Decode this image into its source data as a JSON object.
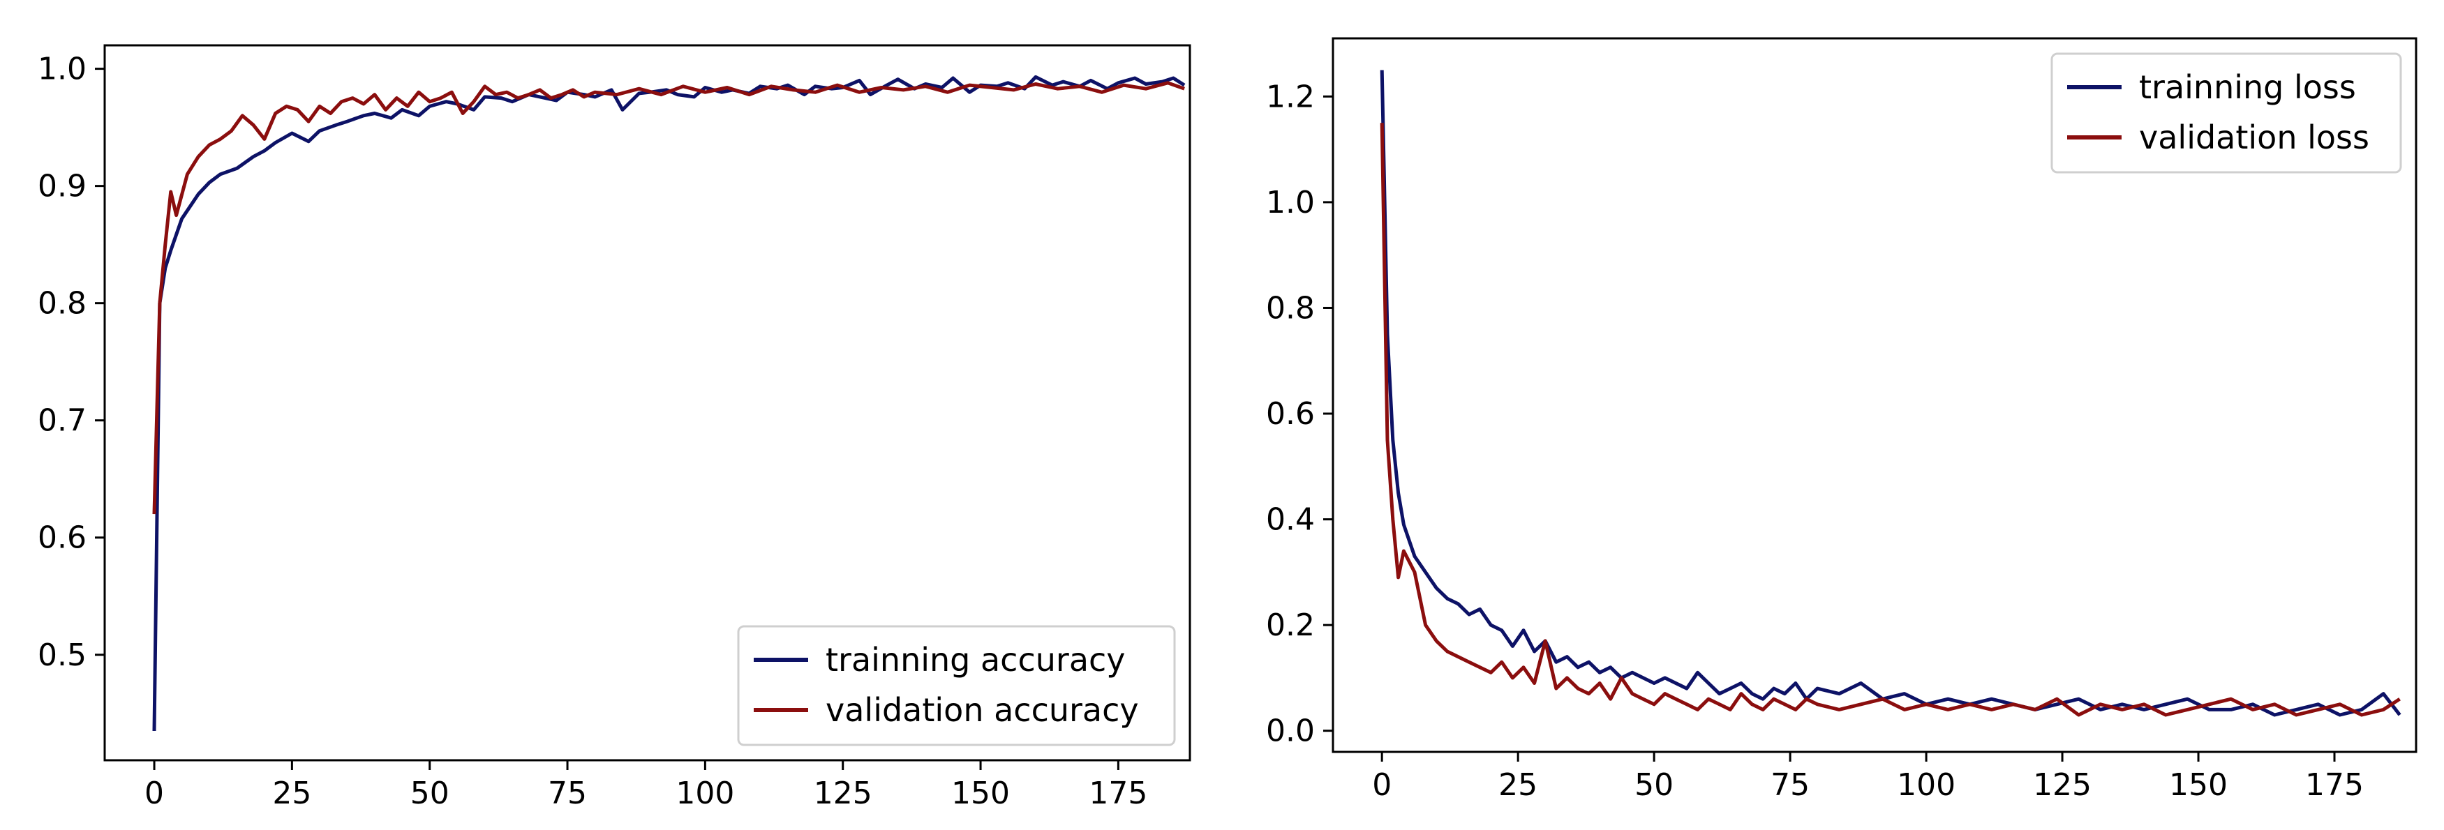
{
  "chart_data": [
    {
      "type": "line",
      "title": "",
      "xlabel": "",
      "ylabel": "",
      "xlim": [
        -9,
        188
      ],
      "ylim": [
        0.41,
        1.02
      ],
      "grid": false,
      "legend_position": "lower-right",
      "xticks": [
        0,
        25,
        50,
        75,
        100,
        125,
        150,
        175
      ],
      "xtick_labels": [
        "0",
        "25",
        "50",
        "75",
        "100",
        "125",
        "150",
        "175"
      ],
      "yticks": [
        0.5,
        0.6,
        0.7,
        0.8,
        0.9,
        1.0
      ],
      "ytick_labels": [
        "0.5",
        "0.6",
        "0.7",
        "0.8",
        "0.9",
        "1.0"
      ],
      "series": [
        {
          "name": "trainning accuracy",
          "color": "#0d1266",
          "x": [
            0,
            1,
            2,
            3,
            5,
            8,
            10,
            12,
            15,
            18,
            20,
            22,
            25,
            28,
            30,
            33,
            35,
            38,
            40,
            43,
            45,
            48,
            50,
            53,
            55,
            58,
            60,
            63,
            65,
            68,
            70,
            73,
            75,
            78,
            80,
            83,
            85,
            88,
            90,
            93,
            95,
            98,
            100,
            103,
            105,
            108,
            110,
            113,
            115,
            118,
            120,
            123,
            125,
            128,
            130,
            133,
            135,
            138,
            140,
            143,
            145,
            148,
            150,
            153,
            155,
            158,
            160,
            163,
            165,
            168,
            170,
            173,
            175,
            178,
            180,
            183,
            185,
            187
          ],
          "y": [
            0.435,
            0.8,
            0.83,
            0.845,
            0.872,
            0.893,
            0.903,
            0.91,
            0.915,
            0.925,
            0.93,
            0.937,
            0.945,
            0.938,
            0.947,
            0.952,
            0.955,
            0.96,
            0.962,
            0.958,
            0.965,
            0.96,
            0.968,
            0.972,
            0.97,
            0.965,
            0.976,
            0.975,
            0.972,
            0.978,
            0.976,
            0.973,
            0.98,
            0.978,
            0.976,
            0.982,
            0.965,
            0.979,
            0.98,
            0.982,
            0.978,
            0.976,
            0.984,
            0.98,
            0.982,
            0.979,
            0.985,
            0.983,
            0.986,
            0.978,
            0.985,
            0.983,
            0.984,
            0.99,
            0.978,
            0.986,
            0.991,
            0.983,
            0.987,
            0.984,
            0.992,
            0.98,
            0.986,
            0.985,
            0.988,
            0.983,
            0.993,
            0.986,
            0.989,
            0.985,
            0.99,
            0.983,
            0.988,
            0.992,
            0.987,
            0.989,
            0.992,
            0.986
          ]
        },
        {
          "name": "validation accuracy",
          "color": "#8b0e0e",
          "x": [
            0,
            1,
            2,
            3,
            4,
            6,
            8,
            10,
            12,
            14,
            16,
            18,
            20,
            22,
            24,
            26,
            28,
            30,
            32,
            34,
            36,
            38,
            40,
            42,
            44,
            46,
            48,
            50,
            52,
            54,
            56,
            58,
            60,
            62,
            64,
            66,
            68,
            70,
            72,
            74,
            76,
            78,
            80,
            84,
            88,
            92,
            96,
            100,
            104,
            108,
            112,
            116,
            120,
            124,
            128,
            132,
            136,
            140,
            144,
            148,
            152,
            156,
            160,
            164,
            168,
            172,
            176,
            180,
            184,
            187
          ],
          "y": [
            0.62,
            0.8,
            0.85,
            0.895,
            0.875,
            0.91,
            0.925,
            0.935,
            0.94,
            0.947,
            0.96,
            0.952,
            0.94,
            0.962,
            0.968,
            0.965,
            0.955,
            0.968,
            0.962,
            0.972,
            0.975,
            0.97,
            0.978,
            0.965,
            0.975,
            0.968,
            0.98,
            0.972,
            0.975,
            0.98,
            0.962,
            0.972,
            0.985,
            0.978,
            0.98,
            0.975,
            0.978,
            0.982,
            0.975,
            0.978,
            0.982,
            0.976,
            0.98,
            0.978,
            0.983,
            0.978,
            0.985,
            0.98,
            0.984,
            0.978,
            0.985,
            0.982,
            0.98,
            0.986,
            0.98,
            0.984,
            0.982,
            0.985,
            0.98,
            0.986,
            0.984,
            0.982,
            0.987,
            0.983,
            0.985,
            0.98,
            0.986,
            0.983,
            0.988,
            0.983
          ]
        }
      ]
    },
    {
      "type": "line",
      "title": "",
      "xlabel": "",
      "ylabel": "",
      "xlim": [
        -9,
        190
      ],
      "ylim": [
        -0.04,
        1.31
      ],
      "grid": false,
      "legend_position": "upper-right",
      "xticks": [
        0,
        25,
        50,
        75,
        100,
        125,
        150,
        175
      ],
      "xtick_labels": [
        "0",
        "25",
        "50",
        "75",
        "100",
        "125",
        "150",
        "175"
      ],
      "yticks": [
        0.0,
        0.2,
        0.4,
        0.6,
        0.8,
        1.0,
        1.2
      ],
      "ytick_labels": [
        "0.0",
        "0.2",
        "0.4",
        "0.6",
        "0.8",
        "1.0",
        "1.2"
      ],
      "series": [
        {
          "name": "trainning loss",
          "color": "#0d1266",
          "x": [
            0,
            1,
            2,
            3,
            4,
            6,
            8,
            10,
            12,
            14,
            16,
            18,
            20,
            22,
            24,
            26,
            28,
            30,
            32,
            34,
            36,
            38,
            40,
            42,
            44,
            46,
            48,
            50,
            52,
            54,
            56,
            58,
            60,
            62,
            64,
            66,
            68,
            70,
            72,
            74,
            76,
            78,
            80,
            84,
            88,
            92,
            96,
            100,
            104,
            108,
            112,
            116,
            120,
            124,
            128,
            132,
            136,
            140,
            144,
            148,
            152,
            156,
            160,
            164,
            168,
            172,
            176,
            180,
            184,
            187
          ],
          "y": [
            1.25,
            0.75,
            0.55,
            0.45,
            0.39,
            0.33,
            0.3,
            0.27,
            0.25,
            0.24,
            0.22,
            0.23,
            0.2,
            0.19,
            0.16,
            0.19,
            0.15,
            0.17,
            0.13,
            0.14,
            0.12,
            0.13,
            0.11,
            0.12,
            0.1,
            0.11,
            0.1,
            0.09,
            0.1,
            0.09,
            0.08,
            0.11,
            0.09,
            0.07,
            0.08,
            0.09,
            0.07,
            0.06,
            0.08,
            0.07,
            0.09,
            0.06,
            0.08,
            0.07,
            0.09,
            0.06,
            0.07,
            0.05,
            0.06,
            0.05,
            0.06,
            0.05,
            0.04,
            0.05,
            0.06,
            0.04,
            0.05,
            0.04,
            0.05,
            0.06,
            0.04,
            0.04,
            0.05,
            0.03,
            0.04,
            0.05,
            0.03,
            0.04,
            0.07,
            0.03
          ]
        },
        {
          "name": "validation loss",
          "color": "#8b0e0e",
          "x": [
            0,
            1,
            2,
            3,
            4,
            6,
            8,
            10,
            12,
            14,
            16,
            18,
            20,
            22,
            24,
            26,
            28,
            30,
            32,
            34,
            36,
            38,
            40,
            42,
            44,
            46,
            48,
            50,
            52,
            54,
            56,
            58,
            60,
            62,
            64,
            66,
            68,
            70,
            72,
            74,
            76,
            78,
            80,
            84,
            88,
            92,
            96,
            100,
            104,
            108,
            112,
            116,
            120,
            124,
            128,
            132,
            136,
            140,
            144,
            148,
            152,
            156,
            160,
            164,
            168,
            172,
            176,
            180,
            184,
            187
          ],
          "y": [
            1.15,
            0.55,
            0.4,
            0.29,
            0.34,
            0.3,
            0.2,
            0.17,
            0.15,
            0.14,
            0.13,
            0.12,
            0.11,
            0.13,
            0.1,
            0.12,
            0.09,
            0.17,
            0.08,
            0.1,
            0.08,
            0.07,
            0.09,
            0.06,
            0.1,
            0.07,
            0.06,
            0.05,
            0.07,
            0.06,
            0.05,
            0.04,
            0.06,
            0.05,
            0.04,
            0.07,
            0.05,
            0.04,
            0.06,
            0.05,
            0.04,
            0.06,
            0.05,
            0.04,
            0.05,
            0.06,
            0.04,
            0.05,
            0.04,
            0.05,
            0.04,
            0.05,
            0.04,
            0.06,
            0.03,
            0.05,
            0.04,
            0.05,
            0.03,
            0.04,
            0.05,
            0.06,
            0.04,
            0.05,
            0.03,
            0.04,
            0.05,
            0.03,
            0.04,
            0.06
          ]
        }
      ]
    }
  ]
}
